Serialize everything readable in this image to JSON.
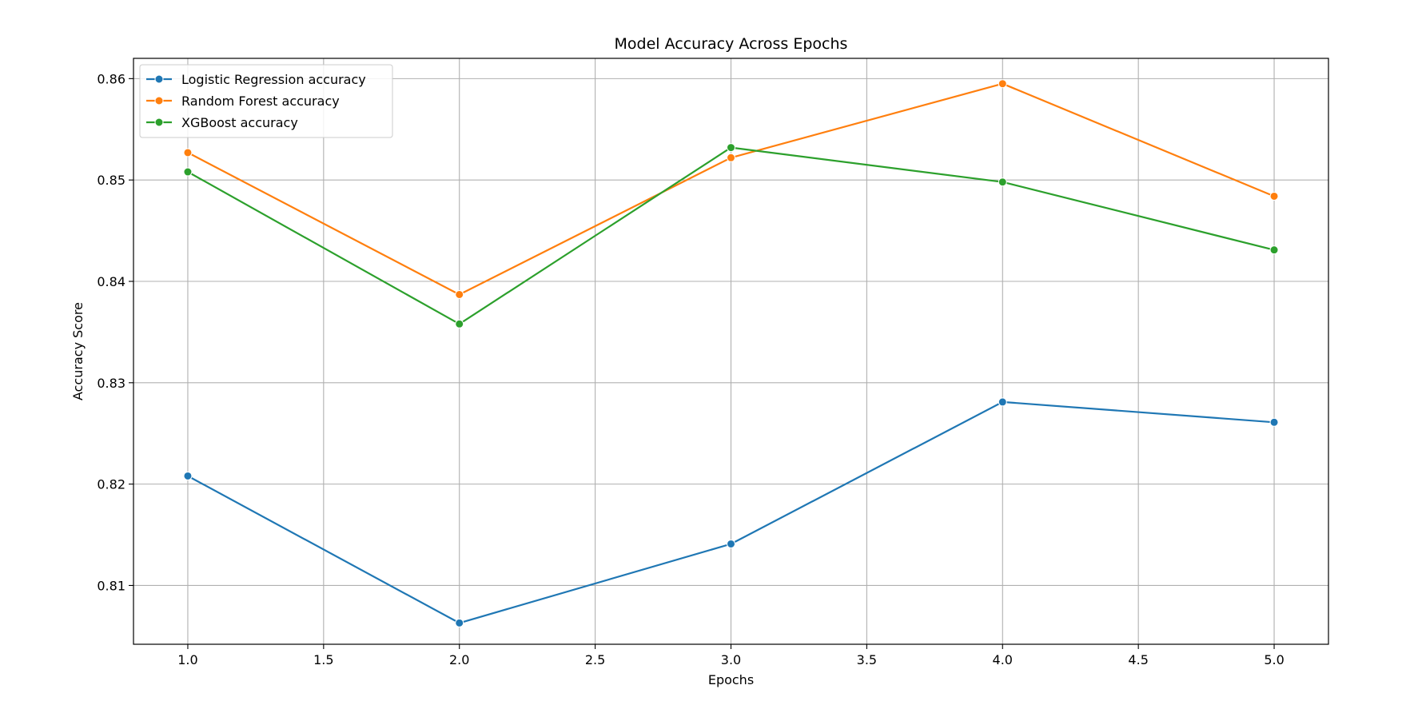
{
  "chart_data": {
    "type": "line",
    "title": "Model Accuracy Across Epochs",
    "xlabel": "Epochs",
    "ylabel": "Accuracy Score",
    "x": [
      1.0,
      2.0,
      3.0,
      4.0,
      5.0
    ],
    "xlim": [
      0.8,
      5.2
    ],
    "ylim": [
      0.8042,
      0.862
    ],
    "xticks": [
      1.0,
      1.5,
      2.0,
      2.5,
      3.0,
      3.5,
      4.0,
      4.5,
      5.0
    ],
    "xtick_labels": [
      "1.0",
      "1.5",
      "2.0",
      "2.5",
      "3.0",
      "3.5",
      "4.0",
      "4.5",
      "5.0"
    ],
    "yticks": [
      0.81,
      0.82,
      0.83,
      0.84,
      0.85,
      0.86
    ],
    "ytick_labels": [
      "0.81",
      "0.82",
      "0.83",
      "0.84",
      "0.85",
      "0.86"
    ],
    "grid": true,
    "legend_position": "top-left",
    "series": [
      {
        "name": "Logistic Regression accuracy",
        "color": "#1f77b4",
        "values": [
          0.8208,
          0.8063,
          0.8141,
          0.8281,
          0.8261
        ]
      },
      {
        "name": "Random Forest accuracy",
        "color": "#ff7f0e",
        "values": [
          0.8527,
          0.8387,
          0.8522,
          0.8595,
          0.8484
        ]
      },
      {
        "name": "XGBoost accuracy",
        "color": "#2ca02c",
        "values": [
          0.8508,
          0.8358,
          0.8532,
          0.8498,
          0.8431
        ]
      }
    ]
  }
}
